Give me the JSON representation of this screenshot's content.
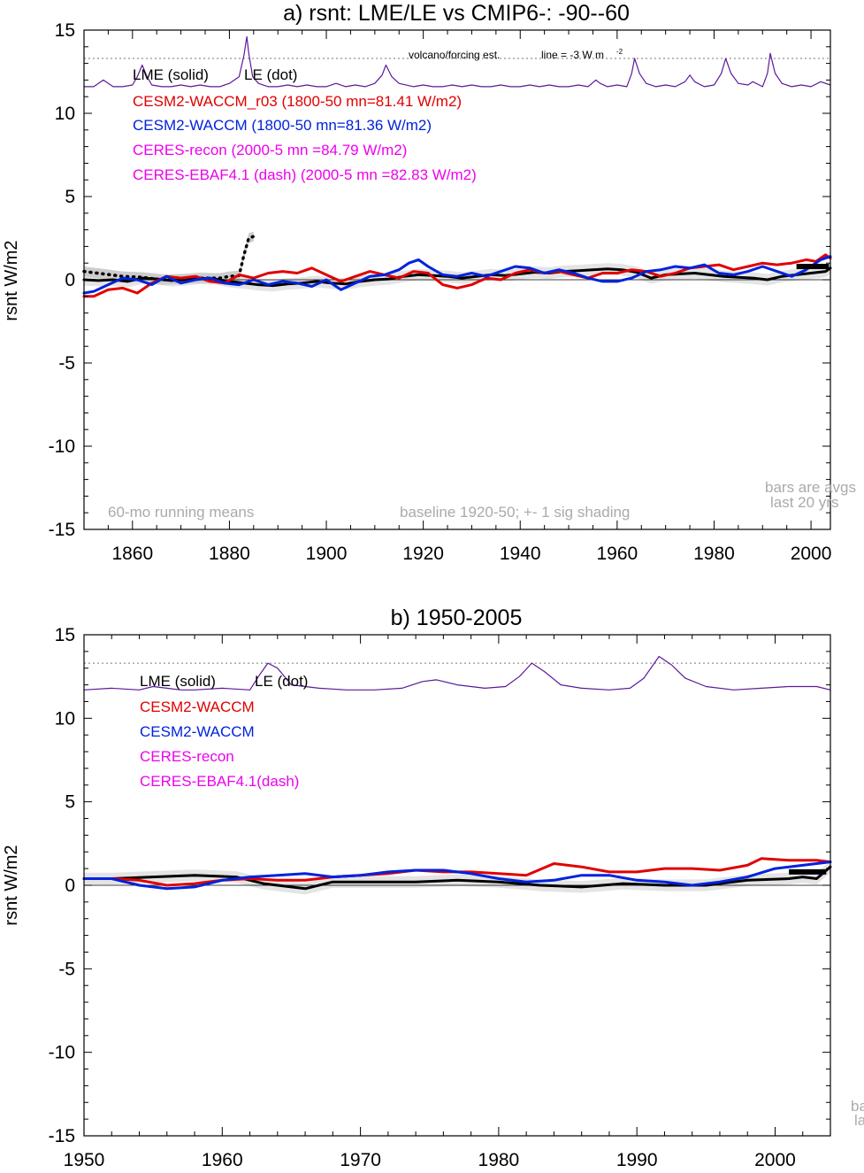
{
  "chart_data": [
    {
      "type": "line",
      "title": "a) rsnt: LME/LE vs CMIP6-: -90--60",
      "ylabel": "rsnt W/m2",
      "xlim": [
        1850,
        2004
      ],
      "ylim": [
        -15,
        15
      ],
      "xticks": [
        1860,
        1880,
        1900,
        1920,
        1940,
        1960,
        1980,
        2000
      ],
      "yticks": [
        -15,
        -10,
        -5,
        0,
        5,
        10,
        15
      ],
      "grid": false,
      "legend_position": "top-left",
      "legend": [
        {
          "label": "LME (solid)",
          "color": "#000000"
        },
        {
          "label": "LE (dot)",
          "color": "#000000"
        },
        {
          "label": "CESM2-WACCM_r03 (1800-50 mn=81.41 W/m2)",
          "color": "#e00000"
        },
        {
          "label": "CESM2-WACCM (1800-50 mn=81.36 W/m2)",
          "color": "#0022dd"
        },
        {
          "label": "CERES-recon (2000-5 mn =84.79 W/m2)",
          "color": "#ee00ee"
        },
        {
          "label": "CERES-EBAF4.1 (dash) (2000-5 mn =82.83 W/m2)",
          "color": "#ee00ee"
        }
      ],
      "annotations": {
        "volcano_label": "volcano/forcing est.",
        "volcano_line_label": "line = -3 W m",
        "volcano_line_sup": "-2",
        "bars_note_1": "bars are avgs",
        "bars_note_2": "last 20 yrs",
        "running_means": "60-mo running means",
        "baseline": "baseline 1920-50; +- 1 sig shading"
      },
      "volcano_reference_level": 13.3,
      "bar_value": 0.8,
      "series": [
        {
          "name": "volcano/forcing est.",
          "color": "#5a1a9a",
          "x": [
            1850,
            1852,
            1854,
            1856,
            1858,
            1860,
            1861,
            1862,
            1863,
            1864,
            1866,
            1868,
            1870,
            1872,
            1874,
            1876,
            1878,
            1880,
            1882,
            1883,
            1883.6,
            1884,
            1884.8,
            1886,
            1888,
            1890,
            1892,
            1894,
            1896,
            1898,
            1900,
            1902,
            1904,
            1906,
            1908,
            1910,
            1911.5,
            1912.3,
            1913.5,
            1915,
            1918,
            1920,
            1922,
            1924,
            1926,
            1928,
            1930,
            1932,
            1934,
            1936,
            1938,
            1940,
            1942,
            1944,
            1946,
            1948,
            1950,
            1952,
            1954,
            1955.6,
            1956.5,
            1958,
            1960,
            1962,
            1963,
            1963.6,
            1964.6,
            1966,
            1968,
            1970,
            1972,
            1974,
            1975,
            1976,
            1978,
            1980,
            1981.5,
            1982.4,
            1983.5,
            1985,
            1987,
            1988,
            1990,
            1991,
            1991.6,
            1992.6,
            1994,
            1996,
            1998,
            2000,
            2002,
            2004
          ],
          "values": [
            11.6,
            11.6,
            12.0,
            11.6,
            11.6,
            11.7,
            12.2,
            12.9,
            12.2,
            11.7,
            11.6,
            11.6,
            11.7,
            11.6,
            11.7,
            11.6,
            11.6,
            11.8,
            12.2,
            13.5,
            14.6,
            13.6,
            12.2,
            11.8,
            11.6,
            11.6,
            11.7,
            11.6,
            11.7,
            11.6,
            11.6,
            11.8,
            11.6,
            11.7,
            11.6,
            11.8,
            12.3,
            12.9,
            12.2,
            11.8,
            11.6,
            11.7,
            11.6,
            11.6,
            11.7,
            11.6,
            11.7,
            11.6,
            11.6,
            11.7,
            11.6,
            11.6,
            11.7,
            11.6,
            11.7,
            11.6,
            11.6,
            11.7,
            11.6,
            12.0,
            11.8,
            11.6,
            11.7,
            11.6,
            12.4,
            13.3,
            12.4,
            11.8,
            11.6,
            11.7,
            11.6,
            11.9,
            12.3,
            11.9,
            11.6,
            11.7,
            12.4,
            13.3,
            12.4,
            11.8,
            11.7,
            11.9,
            11.6,
            12.4,
            13.6,
            12.4,
            11.8,
            11.6,
            11.7,
            11.6,
            11.9,
            11.7
          ]
        },
        {
          "name": "LME (solid)",
          "color": "#000000",
          "x": [
            1850,
            1853,
            1856,
            1859,
            1862,
            1865,
            1868,
            1871,
            1874,
            1877,
            1880,
            1883,
            1886,
            1889,
            1892,
            1895,
            1898,
            1901,
            1904,
            1907,
            1910,
            1913,
            1916,
            1919,
            1922,
            1925,
            1928,
            1931,
            1934,
            1937,
            1940,
            1943,
            1946,
            1949,
            1952,
            1955,
            1958,
            1961,
            1964,
            1967,
            1970,
            1973,
            1976,
            1979,
            1982,
            1985,
            1988,
            1991,
            1994,
            1997,
            2000,
            2003,
            2004
          ],
          "values": [
            0.0,
            -0.05,
            0.0,
            -0.1,
            0.1,
            0.05,
            -0.05,
            0.0,
            0.1,
            0.05,
            -0.1,
            -0.2,
            -0.3,
            -0.35,
            -0.25,
            -0.2,
            -0.1,
            -0.2,
            -0.25,
            -0.1,
            0.0,
            0.05,
            0.2,
            0.3,
            0.25,
            0.2,
            0.1,
            0.2,
            0.3,
            0.25,
            0.35,
            0.45,
            0.4,
            0.5,
            0.55,
            0.6,
            0.65,
            0.6,
            0.45,
            0.1,
            0.3,
            0.35,
            0.4,
            0.3,
            0.2,
            0.15,
            0.1,
            0.0,
            0.2,
            0.3,
            0.4,
            0.5,
            0.7
          ]
        },
        {
          "name": "LE (dot)",
          "color": "#000000",
          "x": [
            1850,
            1854,
            1858,
            1862,
            1866,
            1870,
            1874,
            1878,
            1880,
            1882,
            1883,
            1884,
            1885
          ],
          "values": [
            0.5,
            0.35,
            0.2,
            0.15,
            0.0,
            0.05,
            0.1,
            0.1,
            0.2,
            0.25,
            1.5,
            2.5,
            2.6
          ]
        },
        {
          "name": "CESM2-WACCM_r03 (1800-50 mn=81.41 W/m2)",
          "color": "#e00000",
          "x": [
            1850,
            1852,
            1855,
            1858,
            1861,
            1864,
            1867,
            1870,
            1873,
            1876,
            1879,
            1882,
            1885,
            1888,
            1891,
            1894,
            1897,
            1900,
            1903,
            1906,
            1909,
            1912,
            1915,
            1918,
            1921,
            1924,
            1927,
            1930,
            1933,
            1936,
            1939,
            1942,
            1945,
            1948,
            1951,
            1954,
            1957,
            1960,
            1963,
            1966,
            1969,
            1972,
            1975,
            1978,
            1981,
            1984,
            1987,
            1990,
            1993,
            1996,
            1999,
            2001,
            2003,
            2004
          ],
          "values": [
            -1.0,
            -1.0,
            -0.6,
            -0.5,
            -0.8,
            -0.2,
            0.2,
            0.1,
            0.2,
            -0.1,
            -0.2,
            0.3,
            0.1,
            0.4,
            0.5,
            0.4,
            0.7,
            0.3,
            -0.1,
            0.2,
            0.5,
            0.3,
            0.1,
            0.5,
            0.4,
            -0.3,
            -0.5,
            -0.3,
            0.1,
            0.0,
            0.4,
            0.6,
            0.4,
            0.5,
            0.3,
            0.1,
            0.4,
            0.4,
            0.6,
            0.5,
            0.2,
            0.4,
            0.7,
            0.8,
            0.9,
            0.6,
            0.8,
            1.0,
            0.9,
            1.0,
            1.2,
            1.1,
            1.5,
            1.3
          ]
        },
        {
          "name": "CESM2-WACCM (1800-50 mn=81.36 W/m2)",
          "color": "#0022dd",
          "x": [
            1850,
            1852,
            1855,
            1858,
            1861,
            1864,
            1867,
            1870,
            1873,
            1876,
            1879,
            1882,
            1885,
            1888,
            1891,
            1894,
            1897,
            1900,
            1903,
            1906,
            1909,
            1912,
            1915,
            1917,
            1919,
            1921,
            1924,
            1927,
            1930,
            1933,
            1936,
            1939,
            1942,
            1945,
            1948,
            1951,
            1954,
            1957,
            1960,
            1963,
            1966,
            1969,
            1972,
            1975,
            1978,
            1981,
            1984,
            1987,
            1990,
            1993,
            1996,
            1999,
            2002,
            2004
          ],
          "values": [
            -0.8,
            -0.7,
            -0.3,
            0.1,
            0.0,
            -0.3,
            0.2,
            -0.2,
            0.0,
            0.1,
            -0.2,
            -0.3,
            0.0,
            -0.3,
            -0.1,
            -0.2,
            -0.4,
            0.0,
            -0.6,
            -0.2,
            0.2,
            0.3,
            0.6,
            1.0,
            1.2,
            0.8,
            0.3,
            0.2,
            0.4,
            0.2,
            0.5,
            0.8,
            0.7,
            0.4,
            0.6,
            0.4,
            0.1,
            -0.1,
            -0.1,
            0.1,
            0.5,
            0.6,
            0.8,
            0.7,
            0.9,
            0.4,
            0.3,
            0.5,
            0.8,
            0.5,
            0.2,
            0.6,
            1.2,
            1.4
          ]
        }
      ]
    },
    {
      "type": "line",
      "title": "b) 1950-2005",
      "ylabel": "rsnt W/m2",
      "xlim": [
        1950,
        2004
      ],
      "ylim": [
        -15,
        15
      ],
      "xticks": [
        1950,
        1960,
        1970,
        1980,
        1990,
        2000
      ],
      "yticks": [
        -15,
        -10,
        -5,
        0,
        5,
        10,
        15
      ],
      "grid": false,
      "legend_position": "top-left",
      "legend": [
        {
          "label": "LME (solid)",
          "color": "#000000"
        },
        {
          "label": "LE (dot)",
          "color": "#000000"
        },
        {
          "label": "CESM2-WACCM",
          "color": "#e00000"
        },
        {
          "label": "CESM2-WACCM",
          "color": "#0022dd"
        },
        {
          "label": "CERES-recon",
          "color": "#ee00ee"
        },
        {
          "label": "CERES-EBAF4.1(dash)",
          "color": "#ee00ee"
        }
      ],
      "annotations": {
        "bars_note_1": "ba",
        "bars_note_2": "la"
      },
      "volcano_reference_level": 13.3,
      "bar_value": 0.8,
      "series": [
        {
          "name": "volcano/forcing est.",
          "color": "#5a1a9a",
          "x": [
            1950,
            1952,
            1954,
            1955,
            1956,
            1957,
            1958,
            1960,
            1962,
            1962.7,
            1963.3,
            1964,
            1965,
            1967,
            1969,
            1971,
            1973,
            1974.5,
            1975.5,
            1977,
            1979,
            1980.5,
            1981.5,
            1982.4,
            1983.3,
            1984.5,
            1986,
            1988,
            1989.5,
            1990.5,
            1991.6,
            1992.5,
            1993.5,
            1995,
            1997,
            1999,
            2001,
            2003,
            2004
          ],
          "values": [
            11.7,
            11.8,
            11.7,
            11.9,
            11.8,
            11.7,
            11.7,
            11.8,
            11.7,
            12.6,
            13.3,
            13.0,
            12.0,
            11.8,
            11.7,
            11.7,
            11.8,
            12.2,
            12.3,
            12.0,
            11.8,
            11.9,
            12.5,
            13.3,
            12.8,
            12.0,
            11.8,
            11.7,
            11.8,
            12.4,
            13.7,
            13.2,
            12.4,
            11.9,
            11.7,
            11.8,
            11.9,
            11.9,
            11.7
          ]
        },
        {
          "name": "LME (solid)",
          "color": "#000000",
          "x": [
            1950,
            1952,
            1955,
            1958,
            1961,
            1963,
            1965,
            1966,
            1968,
            1971,
            1974,
            1977,
            1980,
            1983,
            1986,
            1989,
            1992,
            1995,
            1998,
            2001,
            2002,
            2003,
            2004
          ],
          "values": [
            0.4,
            0.4,
            0.5,
            0.6,
            0.5,
            0.1,
            -0.1,
            -0.2,
            0.2,
            0.2,
            0.2,
            0.3,
            0.2,
            0.0,
            -0.1,
            0.1,
            0.0,
            0.0,
            0.3,
            0.4,
            0.5,
            0.4,
            1.1
          ]
        },
        {
          "name": "CESM2-WACCM",
          "color": "#e00000",
          "x": [
            1950,
            1952,
            1954,
            1956,
            1958,
            1960,
            1962,
            1964,
            1966,
            1968,
            1970,
            1972,
            1974,
            1976,
            1978,
            1980,
            1982,
            1984,
            1986,
            1988,
            1990,
            1992,
            1994,
            1996,
            1998,
            1999,
            2001,
            2003,
            2004
          ],
          "values": [
            0.4,
            0.4,
            0.3,
            0.0,
            0.1,
            0.3,
            0.4,
            0.3,
            0.3,
            0.5,
            0.6,
            0.7,
            0.9,
            0.8,
            0.8,
            0.7,
            0.6,
            1.3,
            1.1,
            0.8,
            0.8,
            1.0,
            1.0,
            0.9,
            1.2,
            1.6,
            1.5,
            1.5,
            1.4
          ]
        },
        {
          "name": "CESM2-WACCM",
          "color": "#0022dd",
          "x": [
            1950,
            1952,
            1954,
            1956,
            1958,
            1960,
            1962,
            1964,
            1966,
            1968,
            1970,
            1972,
            1974,
            1976,
            1978,
            1980,
            1982,
            1984,
            1986,
            1988,
            1990,
            1992,
            1994,
            1996,
            1998,
            2000,
            2002,
            2004
          ],
          "values": [
            0.4,
            0.4,
            0.0,
            -0.2,
            -0.1,
            0.3,
            0.5,
            0.6,
            0.7,
            0.5,
            0.6,
            0.8,
            0.9,
            0.9,
            0.7,
            0.4,
            0.2,
            0.3,
            0.6,
            0.6,
            0.3,
            0.2,
            0.0,
            0.2,
            0.5,
            1.0,
            1.2,
            1.4
          ]
        }
      ]
    }
  ]
}
